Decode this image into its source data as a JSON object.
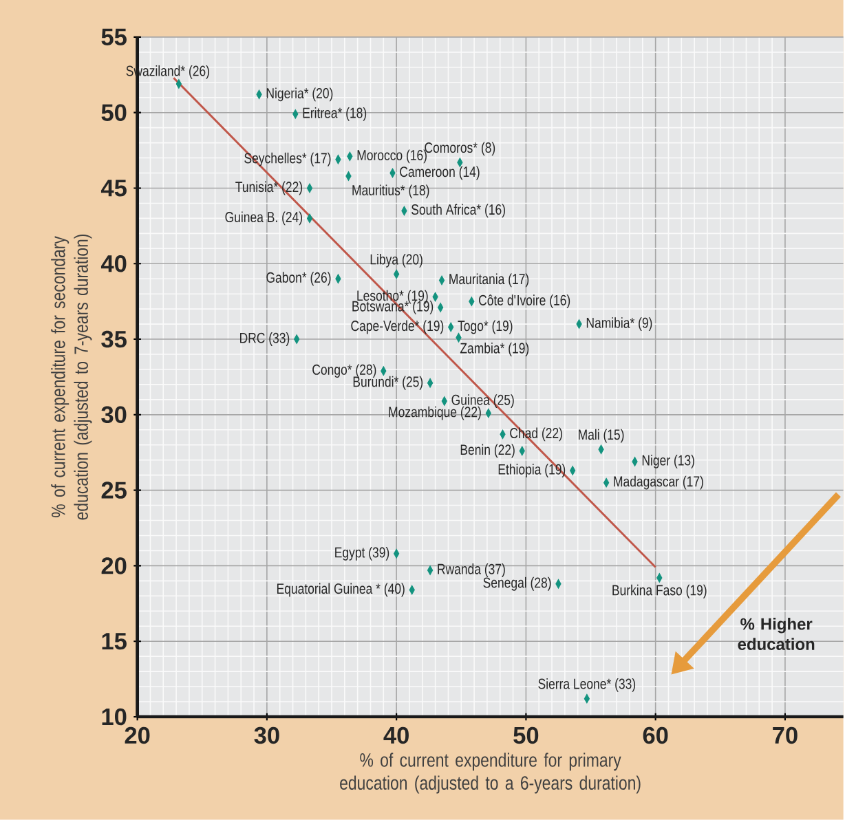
{
  "chart_data": {
    "type": "scatter",
    "xlabel": "% of current expenditure for primary education (adjusted to a 6-years duration)",
    "ylabel": "% of current expenditure for secondary education (adjusted to 7-years duration)",
    "xlim": [
      20,
      74.5
    ],
    "ylim": [
      10,
      55
    ],
    "xticks": [
      20,
      30,
      40,
      50,
      60,
      70
    ],
    "yticks": [
      10,
      15,
      20,
      25,
      30,
      35,
      40,
      45,
      50,
      55
    ],
    "grid": true,
    "marker": "diamond",
    "series": [
      {
        "type": "scatter",
        "color": "#13937f",
        "x": [
          23.2,
          29.4,
          32.2,
          35.5,
          36.4,
          36.3,
          39.7,
          44.9,
          33.3,
          33.3,
          40.6,
          40.0,
          35.5,
          43.5,
          43.0,
          43.4,
          45.8,
          null,
          44.2,
          44.8,
          54.1,
          32.3,
          39.0,
          42.6,
          43.7,
          47.1,
          48.2,
          49.7,
          53.6,
          55.8,
          58.4,
          56.2,
          40.0,
          42.6,
          41.2,
          52.5,
          60.3,
          54.7
        ],
        "values": [
          51.9,
          51.2,
          49.9,
          46.9,
          47.1,
          45.8,
          46.0,
          46.7,
          45.0,
          43.0,
          43.5,
          39.3,
          39.0,
          38.9,
          37.8,
          37.1,
          37.5,
          null,
          35.8,
          35.1,
          36.0,
          35.0,
          32.9,
          32.1,
          30.9,
          30.1,
          28.7,
          27.6,
          26.3,
          27.7,
          26.9,
          25.5,
          20.8,
          19.7,
          18.4,
          18.8,
          19.2,
          11.2
        ]
      },
      {
        "type": "line",
        "color": "#c0574a",
        "marker": "none",
        "x": [
          22.8,
          60.0
        ],
        "values": [
          52.3,
          19.9
        ]
      }
    ],
    "annotations": [
      {
        "text": "Swaziland* (26)",
        "x": 23.2,
        "y": 51.9
      },
      {
        "text": "Nigeria* (20)",
        "x": 29.4,
        "y": 51.2
      },
      {
        "text": "Eritrea* (18)",
        "x": 32.2,
        "y": 49.9
      },
      {
        "text": "Seychelles* (17)",
        "x": 35.5,
        "y": 46.9
      },
      {
        "text": "Morocco (16)",
        "x": 36.4,
        "y": 47.1
      },
      {
        "text": "Mauritius* (18)",
        "x": 36.3,
        "y": 45.8
      },
      {
        "text": "Cameroon (14)",
        "x": 39.7,
        "y": 46.0
      },
      {
        "text": "Comoros* (8)",
        "x": 44.9,
        "y": 46.7
      },
      {
        "text": "Tunisia* (22)",
        "x": 33.3,
        "y": 45.0
      },
      {
        "text": "Guinea B. (24)",
        "x": 33.3,
        "y": 43.0
      },
      {
        "text": "South Africa* (16)",
        "x": 40.6,
        "y": 43.5
      },
      {
        "text": "Libya (20)",
        "x": 40.0,
        "y": 39.3
      },
      {
        "text": "Gabon* (26)",
        "x": 35.5,
        "y": 39.0
      },
      {
        "text": "Mauritania (17)",
        "x": 43.5,
        "y": 38.9
      },
      {
        "text": "Lesotho* (19)",
        "x": 43.0,
        "y": 37.8
      },
      {
        "text": "Botswana* (19)",
        "x": 43.4,
        "y": 37.1
      },
      {
        "text": "Côte d'Ivoire (16)",
        "x": 45.8,
        "y": 37.5
      },
      {
        "text": "Cape-Verde* (19)",
        "x": 44.2,
        "y": 35.8
      },
      {
        "text": "Togo* (19)",
        "x": 44.2,
        "y": 35.8
      },
      {
        "text": "Zambia* (19)",
        "x": 44.8,
        "y": 35.1
      },
      {
        "text": "Namibia* (9)",
        "x": 54.1,
        "y": 36.0
      },
      {
        "text": "DRC (33)",
        "x": 32.3,
        "y": 35.0
      },
      {
        "text": "Congo* (28)",
        "x": 39.0,
        "y": 32.9
      },
      {
        "text": "Burundi* (25)",
        "x": 42.6,
        "y": 32.1
      },
      {
        "text": "Guinea (25)",
        "x": 43.7,
        "y": 30.9
      },
      {
        "text": "Mozambique (22)",
        "x": 47.1,
        "y": 30.1
      },
      {
        "text": "Chad (22)",
        "x": 48.2,
        "y": 28.7
      },
      {
        "text": "Benin (22)",
        "x": 49.7,
        "y": 27.6
      },
      {
        "text": "Ethiopia (19)",
        "x": 53.6,
        "y": 26.3
      },
      {
        "text": "Mali (15)",
        "x": 55.8,
        "y": 27.7
      },
      {
        "text": "Niger (13)",
        "x": 58.4,
        "y": 26.9
      },
      {
        "text": "Madagascar (17)",
        "x": 56.2,
        "y": 25.5
      },
      {
        "text": "Egypt (39)",
        "x": 40.0,
        "y": 20.8
      },
      {
        "text": "Rwanda (37)",
        "x": 42.6,
        "y": 19.7
      },
      {
        "text": "Equatorial Guinea * (40)",
        "x": 41.2,
        "y": 18.4
      },
      {
        "text": "Senegal (28)",
        "x": 52.5,
        "y": 18.8
      },
      {
        "text": "Burkina Faso (19)",
        "x": 60.3,
        "y": 19.2
      },
      {
        "text": "Sierra Leone* (33)",
        "x": 54.7,
        "y": 11.2
      },
      "% Higher education"
    ]
  }
}
